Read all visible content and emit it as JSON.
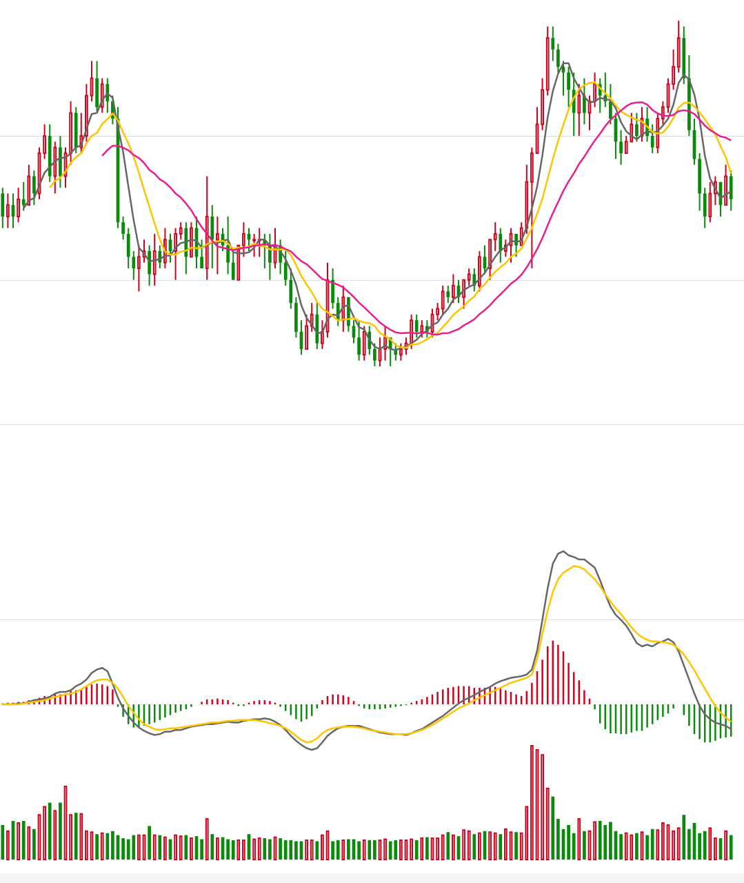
{
  "chart_data": {
    "type": "candlestick",
    "title": "",
    "xlabel": "",
    "ylabel": "",
    "colors": {
      "up": "#d0021b",
      "down": "#0a8a0a",
      "ma5": "#666666",
      "ma10": "#ffc400",
      "ma20": "#e91e8c",
      "dif": "#666666",
      "dea": "#ffc400"
    },
    "price_panel": {
      "ylim": [
        0,
        100
      ],
      "grid": true,
      "gridlines": [
        80,
        55,
        30
      ],
      "candles": [
        [
          70,
          66,
          71,
          64
        ],
        [
          66,
          68,
          70,
          64
        ],
        [
          68,
          66,
          70,
          64
        ],
        [
          66,
          69,
          71,
          65
        ],
        [
          69,
          68,
          72,
          67
        ],
        [
          68,
          73,
          75,
          68
        ],
        [
          73,
          70,
          74,
          68
        ],
        [
          70,
          77,
          78,
          69
        ],
        [
          77,
          80,
          82,
          76
        ],
        [
          80,
          73,
          82,
          72
        ],
        [
          73,
          78,
          79,
          70
        ],
        [
          78,
          73,
          80,
          71
        ],
        [
          73,
          77,
          78,
          71
        ],
        [
          77,
          84,
          86,
          75
        ],
        [
          84,
          78,
          85,
          77
        ],
        [
          78,
          80,
          84,
          77
        ],
        [
          80,
          87,
          89,
          79
        ],
        [
          87,
          90,
          93,
          86
        ],
        [
          90,
          85,
          93,
          84
        ],
        [
          85,
          89,
          90,
          84
        ],
        [
          89,
          86,
          90,
          84
        ],
        [
          86,
          83,
          87,
          82
        ],
        [
          83,
          65,
          85,
          64
        ],
        [
          65,
          63,
          66,
          62
        ],
        [
          63,
          59,
          64,
          57
        ],
        [
          59,
          57,
          60,
          55
        ],
        [
          57,
          59,
          61,
          53
        ],
        [
          59,
          60,
          62,
          58
        ],
        [
          60,
          56,
          61,
          54
        ],
        [
          56,
          60,
          63,
          54
        ],
        [
          60,
          58,
          61,
          57
        ],
        [
          58,
          62,
          64,
          57
        ],
        [
          62,
          60,
          63,
          58
        ],
        [
          60,
          63,
          64,
          55
        ],
        [
          63,
          64,
          65,
          62
        ],
        [
          64,
          59,
          65,
          56
        ],
        [
          59,
          64,
          65,
          59
        ],
        [
          64,
          59,
          66,
          57
        ],
        [
          59,
          57,
          62,
          57
        ],
        [
          57,
          66,
          73,
          55
        ],
        [
          66,
          62,
          68,
          57
        ],
        [
          62,
          63,
          66,
          56
        ],
        [
          63,
          61,
          64,
          60
        ],
        [
          61,
          58,
          66,
          56
        ],
        [
          58,
          55,
          60,
          55
        ],
        [
          55,
          61,
          61,
          56
        ],
        [
          61,
          63,
          65,
          59
        ],
        [
          63,
          62,
          64,
          60
        ],
        [
          62,
          62,
          63,
          59
        ],
        [
          62,
          62,
          64,
          59
        ],
        [
          62,
          61,
          63,
          57
        ],
        [
          61,
          58,
          63,
          55
        ],
        [
          58,
          61,
          64,
          57
        ],
        [
          61,
          58,
          62,
          56
        ],
        [
          58,
          55,
          60,
          54
        ],
        [
          55,
          51,
          57,
          50
        ],
        [
          51,
          46,
          52,
          45
        ],
        [
          46,
          43,
          48,
          42
        ],
        [
          43,
          47,
          49,
          43
        ],
        [
          47,
          49,
          51,
          46
        ],
        [
          49,
          44,
          51,
          43
        ],
        [
          44,
          46,
          48,
          43
        ],
        [
          46,
          55,
          58,
          45
        ],
        [
          55,
          51,
          57,
          50
        ],
        [
          51,
          48,
          52,
          47
        ],
        [
          48,
          52,
          54,
          46
        ],
        [
          52,
          47,
          52,
          46
        ],
        [
          47,
          45,
          48,
          44
        ],
        [
          45,
          42,
          48,
          41
        ],
        [
          42,
          46,
          47,
          41
        ],
        [
          46,
          43,
          47,
          42
        ],
        [
          43,
          41,
          44,
          40
        ],
        [
          41,
          43,
          45,
          40
        ],
        [
          43,
          45,
          47,
          41
        ],
        [
          45,
          43,
          45,
          40
        ],
        [
          43,
          42,
          44,
          41
        ],
        [
          42,
          43,
          44,
          41
        ],
        [
          43,
          44,
          45,
          42
        ],
        [
          44,
          48,
          49,
          43
        ],
        [
          48,
          46,
          49,
          45
        ],
        [
          46,
          47,
          48,
          45
        ],
        [
          47,
          46,
          48,
          45
        ],
        [
          46,
          49,
          50,
          45
        ],
        [
          49,
          50,
          51,
          48
        ],
        [
          50,
          53,
          54,
          49
        ],
        [
          53,
          52,
          54,
          51
        ],
        [
          52,
          54,
          56,
          51
        ],
        [
          54,
          52,
          55,
          51
        ],
        [
          52,
          55,
          55,
          50
        ],
        [
          55,
          56,
          57,
          54
        ],
        [
          56,
          54,
          57,
          53
        ],
        [
          54,
          59,
          60,
          53
        ],
        [
          59,
          57,
          61,
          56
        ],
        [
          57,
          62,
          62,
          55
        ],
        [
          62,
          63,
          65,
          60
        ],
        [
          63,
          60,
          64,
          58
        ],
        [
          60,
          61,
          62,
          59
        ],
        [
          61,
          63,
          64,
          58
        ],
        [
          63,
          61,
          63,
          59
        ],
        [
          61,
          64,
          65,
          61
        ],
        [
          64,
          72,
          75,
          63
        ],
        [
          72,
          77,
          78,
          57
        ],
        [
          77,
          82,
          85,
          77
        ],
        [
          82,
          88,
          90,
          81
        ],
        [
          88,
          97,
          99,
          87
        ],
        [
          97,
          95,
          99,
          93
        ],
        [
          95,
          92,
          96,
          91
        ],
        [
          92,
          91,
          93,
          87
        ],
        [
          91,
          88,
          92,
          85
        ],
        [
          88,
          84,
          91,
          80
        ],
        [
          84,
          87,
          89,
          80
        ],
        [
          87,
          84,
          90,
          82
        ],
        [
          84,
          86,
          87,
          81
        ],
        [
          86,
          89,
          91,
          85
        ],
        [
          89,
          87,
          90,
          84
        ],
        [
          87,
          86,
          91,
          85
        ],
        [
          86,
          83,
          89,
          82
        ],
        [
          83,
          79,
          84,
          76
        ],
        [
          79,
          77,
          81,
          75
        ],
        [
          77,
          79,
          80,
          77
        ],
        [
          79,
          82,
          84,
          79
        ],
        [
          82,
          80,
          84,
          79
        ],
        [
          80,
          83,
          85,
          79
        ],
        [
          83,
          80,
          85,
          79
        ],
        [
          80,
          78,
          82,
          77
        ],
        [
          78,
          83,
          84,
          77
        ],
        [
          83,
          85,
          86,
          82
        ],
        [
          85,
          89,
          90,
          84
        ],
        [
          89,
          92,
          95,
          88
        ],
        [
          92,
          97,
          100,
          91
        ],
        [
          97,
          90,
          99,
          89
        ],
        [
          90,
          81,
          94,
          80
        ],
        [
          81,
          76,
          83,
          75
        ],
        [
          76,
          70,
          77,
          67
        ],
        [
          70,
          66,
          71,
          64
        ],
        [
          66,
          70,
          72,
          65
        ],
        [
          70,
          72,
          73,
          68
        ],
        [
          72,
          68,
          72,
          66
        ],
        [
          68,
          73,
          75,
          68
        ],
        [
          73,
          69,
          74,
          67
        ]
      ]
    },
    "macd_panel": {
      "zero_line": true,
      "histogram": [
        0.1,
        0.2,
        0.2,
        0.3,
        0.3,
        0.5,
        0.6,
        0.8,
        1.0,
        1.0,
        1.2,
        1.2,
        1.3,
        1.6,
        1.7,
        1.8,
        2.1,
        2.4,
        2.5,
        2.4,
        2.2,
        1.8,
        -0.3,
        -1.5,
        -2.4,
        -2.8,
        -2.8,
        -2.6,
        -2.4,
        -2.2,
        -1.9,
        -1.6,
        -1.3,
        -1.0,
        -0.8,
        -0.6,
        -0.3,
        0.0,
        0.3,
        0.6,
        0.6,
        0.7,
        0.6,
        0.5,
        0.2,
        -0.2,
        -0.2,
        0.2,
        0.4,
        0.5,
        0.5,
        0.4,
        0.2,
        -0.3,
        -0.8,
        -1.3,
        -1.8,
        -2.1,
        -1.8,
        -1.4,
        -0.5,
        0.5,
        1.0,
        1.2,
        1.2,
        1.1,
        0.9,
        0.4,
        -0.2,
        -0.5,
        -0.6,
        -0.6,
        -0.6,
        -0.5,
        -0.4,
        -0.3,
        -0.2,
        -0.1,
        0.2,
        0.4,
        0.6,
        0.9,
        1.2,
        1.5,
        1.8,
        2.0,
        2.1,
        2.2,
        2.2,
        2.2,
        2.0,
        2.0,
        2.0,
        2.1,
        2.1,
        1.9,
        1.7,
        1.5,
        1.2,
        1.0,
        1.6,
        2.6,
        4.0,
        5.4,
        7.0,
        7.7,
        7.2,
        6.4,
        5.0,
        3.9,
        2.9,
        1.7,
        0.7,
        -0.6,
        -2.3,
        -3.0,
        -3.5,
        -3.5,
        -3.6,
        -3.6,
        -3.4,
        -3.2,
        -3.2,
        -2.8,
        -2.4,
        -1.9,
        -1.5,
        -1.1,
        -0.5,
        0.0,
        -1.3,
        -2.6,
        -3.6,
        -4.2,
        -4.6,
        -4.6,
        -4.4,
        -4.1,
        -4.0,
        -3.9
      ],
      "dif": [
        0.0,
        0.0,
        0.0,
        0.1,
        0.1,
        0.3,
        0.5,
        0.6,
        0.7,
        0.9,
        1.3,
        1.5,
        1.5,
        1.7,
        2.2,
        2.5,
        3.0,
        3.8,
        4.2,
        4.4,
        4.0,
        2.5,
        0.8,
        -0.5,
        -1.4,
        -2.2,
        -2.8,
        -3.2,
        -3.5,
        -3.7,
        -3.6,
        -3.3,
        -3.3,
        -3.1,
        -3.1,
        -2.9,
        -2.7,
        -2.6,
        -2.5,
        -2.4,
        -2.4,
        -2.3,
        -2.2,
        -2.1,
        -2.2,
        -2.2,
        -2.0,
        -1.9,
        -1.8,
        -1.8,
        -1.7,
        -1.8,
        -2.1,
        -2.5,
        -3.1,
        -3.8,
        -4.4,
        -4.9,
        -5.3,
        -5.5,
        -5.3,
        -4.6,
        -3.8,
        -3.3,
        -2.9,
        -2.7,
        -2.6,
        -2.6,
        -2.6,
        -2.8,
        -3.0,
        -3.2,
        -3.4,
        -3.5,
        -3.6,
        -3.6,
        -3.6,
        -3.7,
        -3.5,
        -3.2,
        -3.0,
        -2.6,
        -2.2,
        -1.8,
        -1.4,
        -0.9,
        -0.4,
        0.1,
        0.5,
        0.8,
        1.1,
        1.5,
        1.8,
        2.1,
        2.5,
        2.8,
        3.0,
        3.2,
        3.3,
        3.4,
        3.6,
        4.2,
        6.5,
        10.2,
        14.0,
        17.0,
        18.2,
        18.5,
        18.0,
        17.8,
        17.5,
        17.5,
        17.0,
        16.5,
        15.0,
        13.3,
        11.8,
        10.8,
        10.2,
        9.5,
        8.5,
        7.4,
        7.0,
        7.2,
        7.0,
        7.4,
        7.6,
        7.9,
        7.5,
        6.4,
        4.7,
        3.0,
        1.3,
        -0.2,
        -1.2,
        -1.8,
        -2.2,
        -2.4,
        -2.6,
        -3.0
      ],
      "dea": [
        0.0,
        0.0,
        0.0,
        0.0,
        0.1,
        0.2,
        0.3,
        0.4,
        0.5,
        0.7,
        0.9,
        1.0,
        1.2,
        1.3,
        1.5,
        1.8,
        2.2,
        2.6,
        2.9,
        3.0,
        3.0,
        2.6,
        1.9,
        0.9,
        -0.2,
        -1.0,
        -1.8,
        -2.4,
        -2.7,
        -3.0,
        -3.1,
        -3.0,
        -2.9,
        -2.9,
        -2.8,
        -2.7,
        -2.6,
        -2.5,
        -2.4,
        -2.3,
        -2.2,
        -2.2,
        -2.1,
        -2.0,
        -2.0,
        -1.9,
        -1.9,
        -1.9,
        -1.9,
        -2.0,
        -2.1,
        -2.3,
        -2.4,
        -2.6,
        -2.9,
        -3.3,
        -3.8,
        -4.3,
        -4.6,
        -4.5,
        -4.1,
        -3.5,
        -3.1,
        -2.9,
        -2.8,
        -2.7,
        -2.7,
        -2.7,
        -2.8,
        -2.9,
        -3.1,
        -3.2,
        -3.3,
        -3.4,
        -3.5,
        -3.6,
        -3.6,
        -3.6,
        -3.5,
        -3.3,
        -3.1,
        -2.8,
        -2.5,
        -2.1,
        -1.7,
        -1.3,
        -0.9,
        -0.5,
        -0.2,
        0.1,
        0.5,
        0.8,
        1.1,
        1.4,
        1.7,
        2.0,
        2.3,
        2.6,
        2.8,
        3.0,
        3.2,
        3.6,
        5.5,
        8.5,
        11.3,
        13.6,
        15.1,
        15.9,
        16.3,
        16.7,
        16.6,
        16.3,
        15.7,
        15.1,
        14.3,
        13.3,
        12.4,
        11.6,
        10.9,
        10.1,
        9.3,
        8.6,
        8.1,
        7.8,
        7.6,
        7.6,
        7.5,
        7.4,
        7.2,
        6.7,
        6.0,
        5.1,
        4.1,
        3.0,
        1.9,
        0.8,
        -0.2,
        -1.0,
        -1.6,
        -2.1
      ]
    },
    "volume_panel": {
      "values": [
        34,
        28,
        38,
        36,
        38,
        32,
        30,
        44,
        52,
        56,
        48,
        56,
        72,
        44,
        46,
        45,
        28,
        27,
        25,
        26,
        26,
        28,
        24,
        21,
        20,
        24,
        24,
        24,
        33,
        24,
        24,
        22,
        20,
        24,
        23,
        24,
        21,
        23,
        20,
        40,
        25,
        21,
        22,
        20,
        19,
        19,
        19,
        25,
        20,
        21,
        21,
        20,
        22,
        21,
        19,
        19,
        18,
        18,
        19,
        19,
        18,
        24,
        28,
        18,
        19,
        19,
        20,
        20,
        18,
        19,
        19,
        19,
        19,
        20,
        18,
        19,
        19,
        19,
        20,
        19,
        21,
        22,
        21,
        21,
        24,
        27,
        24,
        23,
        29,
        28,
        25,
        26,
        28,
        27,
        26,
        25,
        30,
        27,
        27,
        26,
        52,
        112,
        108,
        103,
        70,
        62,
        40,
        30,
        34,
        26,
        40,
        28,
        28,
        37,
        38,
        34,
        37,
        28,
        25,
        26,
        24,
        26,
        27,
        24,
        30,
        29,
        36,
        34,
        28,
        31,
        44,
        30,
        36,
        26,
        28,
        31,
        21,
        21,
        28,
        24
      ]
    }
  }
}
